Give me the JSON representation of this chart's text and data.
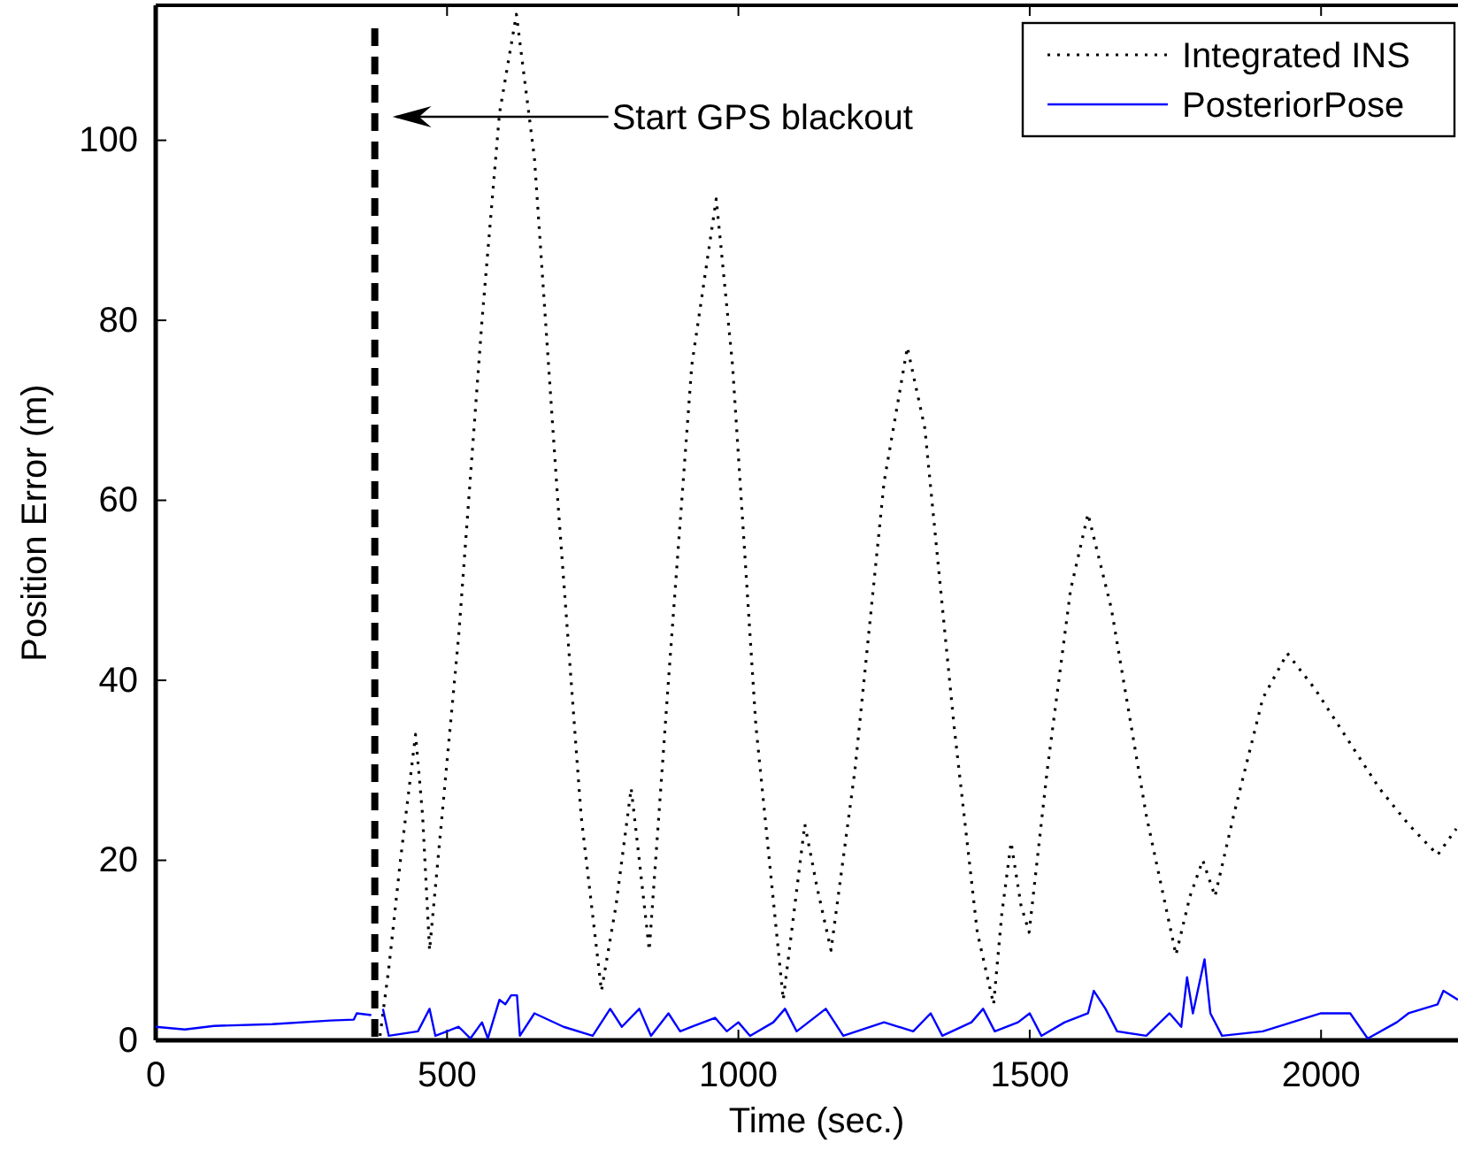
{
  "chart_data": {
    "type": "line",
    "xlabel": "Time (sec.)",
    "ylabel": "Position Error (m)",
    "xlim": [
      0,
      2235
    ],
    "ylim": [
      0,
      115
    ],
    "xticks": [
      0,
      500,
      1000,
      1500,
      2000
    ],
    "yticks": [
      0,
      20,
      40,
      60,
      80,
      100
    ],
    "grid": false,
    "legend": "top right",
    "marker": "none",
    "ref_lines": [
      {
        "axis": "x",
        "value": 376,
        "color": "#000000",
        "line_style": "dashed"
      }
    ],
    "annotations": [
      "Start GPS blackout"
    ],
    "series": [
      {
        "name": "Integrated INS",
        "color": "#000000",
        "line_style": "dotted",
        "x": [
          385,
          400,
          420,
          446,
          458,
          470,
          490,
          520,
          560,
          590,
          619,
          650,
          690,
          730,
          765,
          790,
          816,
          830,
          847,
          880,
          920,
          962,
          990,
          1030,
          1077,
          1095,
          1114,
          1135,
          1159,
          1200,
          1250,
          1290,
          1320,
          1370,
          1410,
          1438,
          1452,
          1468,
          1485,
          1499,
          1530,
          1570,
          1600,
          1640,
          1700,
          1751,
          1775,
          1797,
          1818,
          1850,
          1900,
          1942,
          1990,
          2050,
          2100,
          2150,
          2200,
          2232
        ],
        "values": [
          0.5,
          8,
          20,
          34,
          25,
          10,
          24,
          45,
          80,
          103,
          114,
          98,
          60,
          25,
          5.5,
          15,
          28,
          20,
          10,
          40,
          75,
          93.5,
          75,
          35,
          4.5,
          14,
          24,
          17,
          10,
          30,
          62,
          77,
          68,
          35,
          12,
          4,
          14,
          22,
          15,
          12,
          30,
          50,
          58.5,
          48,
          25,
          9.5,
          16,
          20,
          16,
          25,
          38,
          43,
          39,
          33,
          28,
          24,
          20.6,
          23.5
        ]
      },
      {
        "name": "PosteriorPose",
        "color": "#0000ff",
        "line_style": "solid",
        "x": [
          0,
          50,
          100,
          200,
          300,
          340,
          345,
          370,
          376,
          390,
          400,
          450,
          470,
          480,
          500,
          520,
          540,
          560,
          570,
          590,
          600,
          610,
          620,
          625,
          650,
          700,
          750,
          780,
          800,
          830,
          850,
          880,
          900,
          920,
          960,
          980,
          1000,
          1020,
          1060,
          1080,
          1100,
          1150,
          1180,
          1250,
          1300,
          1330,
          1350,
          1400,
          1420,
          1440,
          1480,
          1500,
          1520,
          1560,
          1600,
          1610,
          1630,
          1650,
          1700,
          1740,
          1760,
          1770,
          1780,
          1800,
          1810,
          1830,
          1900,
          1950,
          2000,
          2050,
          2080,
          2130,
          2150,
          2200,
          2210,
          2235
        ],
        "values": [
          1.5,
          1.2,
          1.6,
          1.8,
          2.2,
          2.3,
          3,
          2.8,
          null,
          3.5,
          0.5,
          1,
          3.5,
          0.5,
          1,
          1.5,
          0.2,
          2,
          0.2,
          4.5,
          4,
          5,
          5,
          0.5,
          3,
          1.5,
          0.5,
          3.5,
          1.5,
          3.5,
          0.5,
          3,
          1,
          1.5,
          2.5,
          1,
          2,
          0.5,
          2,
          3.5,
          1,
          3.5,
          0.5,
          2,
          1,
          3,
          0.5,
          2,
          3.5,
          1,
          2,
          3,
          0.5,
          2,
          3,
          5.5,
          3.5,
          1,
          0.5,
          3,
          1.5,
          7,
          3,
          9,
          3,
          0.5,
          1,
          2,
          3,
          3,
          0.2,
          2,
          3,
          4,
          5.5,
          4.5
        ]
      }
    ]
  }
}
